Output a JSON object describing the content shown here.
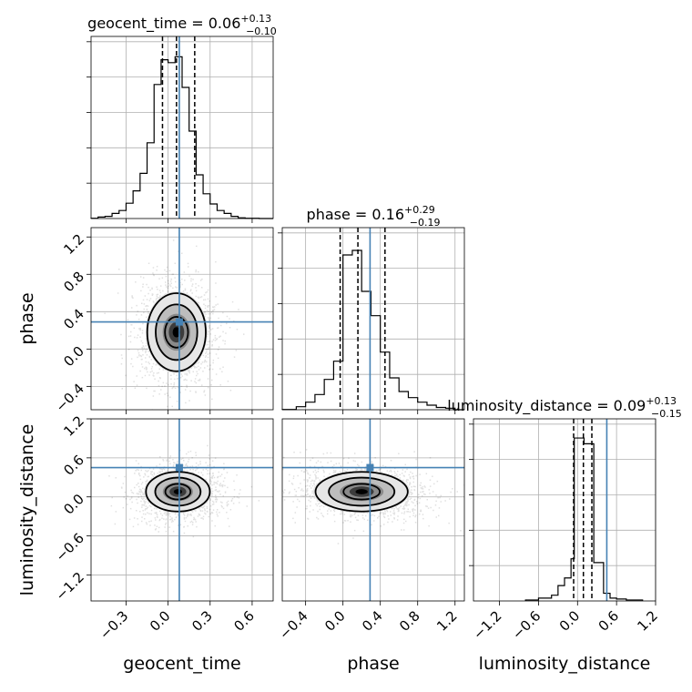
{
  "chart_data": {
    "type": "corner",
    "parameters": [
      {
        "name": "geocent_time",
        "title_prefix": "geocent_time = ",
        "median_text": "0.06",
        "plus_text": "+0.13",
        "minus_text": "−0.10",
        "median": 0.06,
        "q_low": -0.04,
        "q_high": 0.19,
        "truth": 0.08,
        "range": [
          -0.55,
          0.75
        ],
        "ticks": [
          -0.3,
          0.0,
          0.3,
          0.6
        ],
        "tick_labels": [
          "−0.3",
          "0.0",
          "0.3",
          "0.6"
        ],
        "hist_bins": [
          -0.55,
          -0.5,
          -0.45,
          -0.4,
          -0.35,
          -0.3,
          -0.25,
          -0.2,
          -0.15,
          -0.1,
          -0.05,
          0.0,
          0.05,
          0.1,
          0.15,
          0.2,
          0.25,
          0.3,
          0.35,
          0.4,
          0.45,
          0.5,
          0.55,
          0.6,
          0.65,
          0.75
        ],
        "hist_counts": [
          0.2,
          1.0,
          1.5,
          3.5,
          5.5,
          10.5,
          19,
          31,
          52,
          92,
          109,
          107,
          111,
          90,
          60,
          30,
          17,
          10,
          5.5,
          3.5,
          1.5,
          0.5,
          0.2,
          0.2,
          0
        ],
        "hist_max": 125
      },
      {
        "name": "phase",
        "title_prefix": "phase = ",
        "median_text": "0.16",
        "plus_text": "+0.29",
        "minus_text": "−0.19",
        "median": 0.16,
        "q_low": -0.03,
        "q_high": 0.45,
        "truth": 0.29,
        "range": [
          -0.65,
          1.3
        ],
        "ticks": [
          -0.4,
          0.0,
          0.4,
          0.8,
          1.2
        ],
        "tick_labels": [
          "−0.4",
          "0.0",
          "0.4",
          "0.8",
          "1.2"
        ],
        "hist_bins": [
          -0.65,
          -0.5,
          -0.4,
          -0.3,
          -0.2,
          -0.1,
          0.0,
          0.1,
          0.2,
          0.3,
          0.4,
          0.5,
          0.6,
          0.7,
          0.8,
          0.9,
          1.0,
          1.1,
          1.2,
          1.3
        ],
        "hist_counts": [
          0.2,
          2,
          5,
          10,
          20,
          32,
          102,
          105,
          78,
          62,
          38,
          21,
          12,
          8,
          5,
          3,
          1.5,
          1,
          0
        ],
        "hist_max": 120
      },
      {
        "name": "luminosity_distance",
        "title_prefix": "luminosity_distance = ",
        "median_text": "0.09",
        "plus_text": "+0.13",
        "minus_text": "−0.15",
        "median": 0.09,
        "q_low": -0.06,
        "q_high": 0.22,
        "truth": 0.45,
        "range": [
          -1.6,
          1.2
        ],
        "ticks": [
          -1.2,
          -0.6,
          0.0,
          0.6,
          1.2
        ],
        "tick_labels": [
          "−1.2",
          "−0.6",
          "0.0",
          "0.6",
          "1.2"
        ],
        "hist_bins": [
          -0.8,
          -0.6,
          -0.4,
          -0.3,
          -0.2,
          -0.1,
          -0.05,
          0.1,
          0.25,
          0.4,
          0.5,
          0.6,
          0.75,
          1.0
        ],
        "hist_counts": [
          0.5,
          1.5,
          3,
          8,
          12,
          22,
          85,
          82,
          20,
          4,
          1.5,
          1,
          0.5
        ],
        "hist_max": 95
      }
    ],
    "ylabels": {
      "phase": "phase",
      "luminosity_distance": "luminosity_distance"
    },
    "xlabels": [
      "geocent_time",
      "phase",
      "luminosity_distance"
    ],
    "truth_color": "#4682b4",
    "contour_levels": [
      "1-sigma",
      "2-sigma",
      "3-sigma"
    ],
    "grid": true,
    "legend": "none"
  }
}
